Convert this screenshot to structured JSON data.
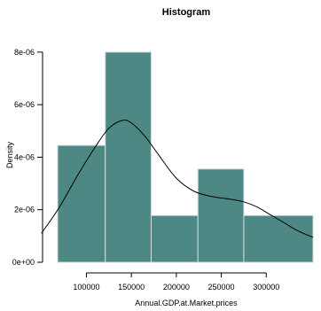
{
  "chart_data": {
    "type": "histogram",
    "title": "Histogram",
    "xlabel": "Annual.GDP.at.Market.prices",
    "ylabel": "Density",
    "xlim": [
      68000,
      352000
    ],
    "ylim": [
      0,
      8.5e-06
    ],
    "bar_color": "#4e8884",
    "bar_edge_color": "#d0dede",
    "bins": [
      {
        "x0": 68000,
        "x1": 121000,
        "density": 4.45e-06
      },
      {
        "x0": 121000,
        "x1": 172000,
        "density": 8e-06
      },
      {
        "x0": 172000,
        "x1": 224000,
        "density": 1.78e-06
      },
      {
        "x0": 224000,
        "x1": 275000,
        "density": 3.55e-06
      },
      {
        "x0": 275000,
        "x1": 352000,
        "density": 1.78e-06
      }
    ],
    "x_ticks": [
      {
        "value": 100000,
        "label": "100000"
      },
      {
        "value": 150000,
        "label": "150000"
      },
      {
        "value": 200000,
        "label": "200000"
      },
      {
        "value": 250000,
        "label": "250000"
      },
      {
        "value": 300000,
        "label": "300000"
      }
    ],
    "y_ticks": [
      {
        "value": 0,
        "label": "0e+00"
      },
      {
        "value": 2e-06,
        "label": "2e-06"
      },
      {
        "value": 4e-06,
        "label": "4e-06"
      },
      {
        "value": 6e-06,
        "label": "6e-06"
      },
      {
        "value": 8e-06,
        "label": "8e-06"
      }
    ],
    "density_curve": {
      "color": "#000000",
      "x": [
        50000,
        70000,
        90000,
        110000,
        125000,
        140000,
        150000,
        165000,
        180000,
        200000,
        220000,
        240000,
        260000,
        275000,
        290000,
        305000,
        320000,
        335000,
        352000
      ],
      "y": [
        1.1e-06,
        2.1e-06,
        3.3e-06,
        4.4e-06,
        5.1e-06,
        5.4e-06,
        5.3e-06,
        4.8e-06,
        4.1e-06,
        3.2e-06,
        2.7e-06,
        2.5e-06,
        2.4e-06,
        2.3e-06,
        2.1e-06,
        1.8e-06,
        1.5e-06,
        1.2e-06,
        9.5e-07
      ]
    }
  }
}
